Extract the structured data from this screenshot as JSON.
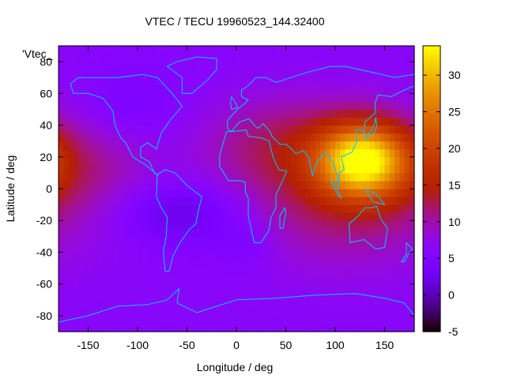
{
  "chart_data": {
    "type": "heatmap",
    "title": "VTEC / TECU 19960523_144.32400",
    "xlabel": "Longitude / deg",
    "ylabel": "Latitude / deg",
    "key_label": "'Vtec_",
    "xlim": [
      -180,
      180
    ],
    "ylim": [
      -90,
      90
    ],
    "x_ticks": [
      -150,
      -100,
      -50,
      0,
      50,
      100,
      150
    ],
    "y_ticks": [
      -80,
      -60,
      -40,
      -20,
      0,
      20,
      40,
      60,
      80
    ],
    "colorbar": {
      "min": -5,
      "max": 34,
      "ticks": [
        -5,
        0,
        5,
        10,
        15,
        20,
        25,
        30
      ]
    },
    "background_level": 6,
    "features": [
      {
        "type": "peak",
        "lon": 128,
        "lat": 18,
        "value": 24,
        "sx": 32,
        "sy": 16
      },
      {
        "type": "enhancement",
        "lon": 110,
        "lat": 0,
        "value": 7,
        "sx": 75,
        "sy": 32
      },
      {
        "type": "enhancement",
        "lon": 40,
        "lat": 30,
        "value": 4,
        "sx": 55,
        "sy": 20
      },
      {
        "type": "enhancement",
        "lon": -140,
        "lat": 20,
        "value": 3,
        "sx": 50,
        "sy": 22
      },
      {
        "type": "depletion",
        "lon": -55,
        "lat": -15,
        "value": -4.5,
        "sx": 45,
        "sy": 14
      },
      {
        "type": "depletion",
        "lon": 10,
        "lat": -35,
        "value": -2,
        "sx": 22,
        "sy": 12
      },
      {
        "type": "depletion",
        "lon": -110,
        "lat": 48,
        "value": -2.5,
        "sx": 40,
        "sy": 18
      }
    ],
    "continent_outline_color": "#00c8ff"
  }
}
